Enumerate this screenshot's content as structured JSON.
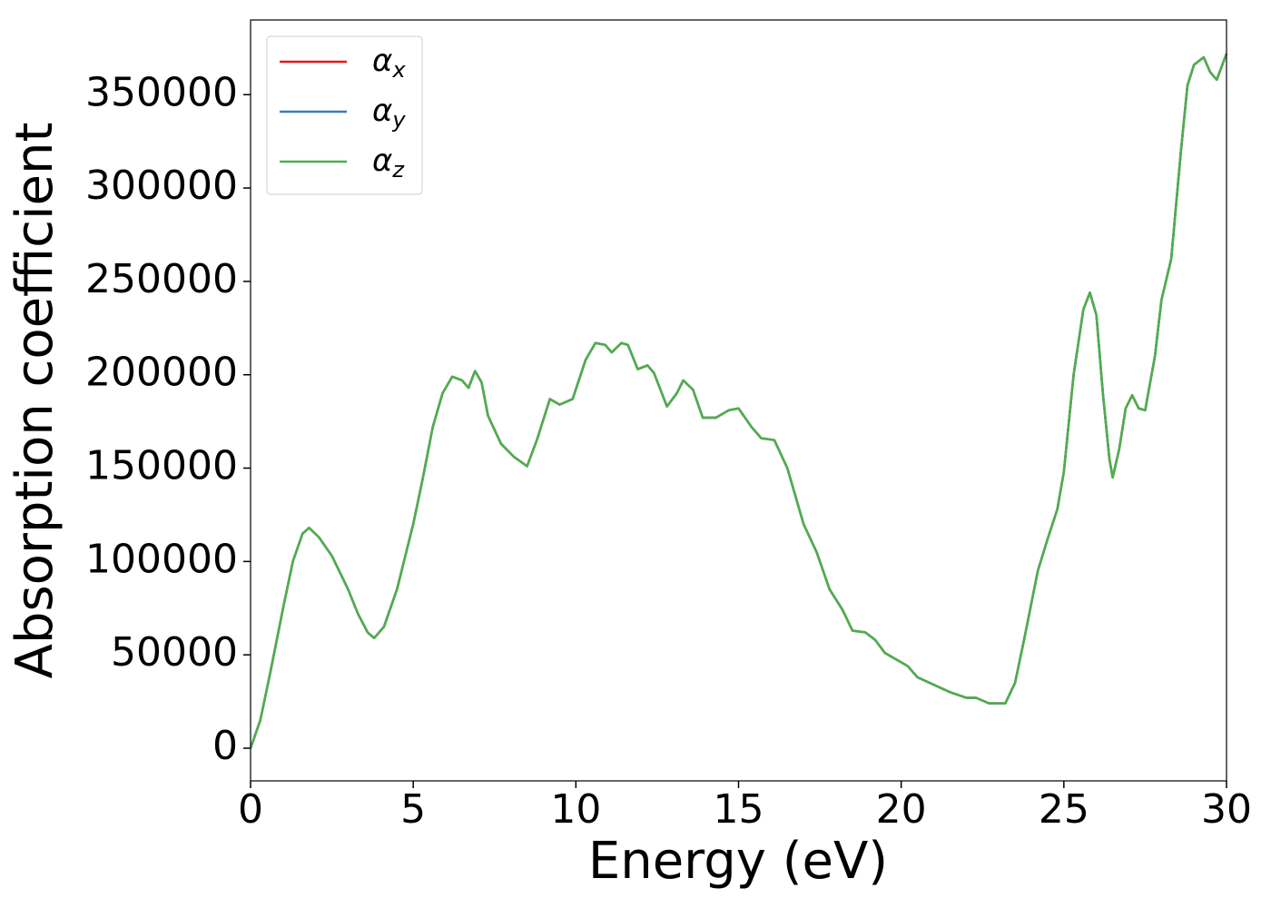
{
  "chart_data": {
    "type": "line",
    "xlabel": "Energy (eV)",
    "ylabel": "Absorption coefficient",
    "xlim": [
      0,
      30
    ],
    "ylim": [
      -17500,
      390000
    ],
    "xticks": [
      0,
      5,
      10,
      15,
      20,
      25,
      30
    ],
    "yticks": [
      0,
      50000,
      100000,
      150000,
      200000,
      250000,
      300000,
      350000
    ],
    "legend": "upper left",
    "x": [
      0,
      0.3,
      0.6,
      1.0,
      1.3,
      1.6,
      1.8,
      2.1,
      2.5,
      3.0,
      3.3,
      3.6,
      3.8,
      4.1,
      4.5,
      5.0,
      5.3,
      5.6,
      5.9,
      6.2,
      6.5,
      6.7,
      6.9,
      7.1,
      7.3,
      7.7,
      8.1,
      8.5,
      8.8,
      9.2,
      9.5,
      9.9,
      10.3,
      10.6,
      10.9,
      11.1,
      11.4,
      11.6,
      11.9,
      12.2,
      12.4,
      12.8,
      13.1,
      13.3,
      13.6,
      13.9,
      14.3,
      14.7,
      15.0,
      15.4,
      15.7,
      16.1,
      16.5,
      17.0,
      17.4,
      17.8,
      18.2,
      18.5,
      18.9,
      19.2,
      19.5,
      20.0,
      20.2,
      20.5,
      21.0,
      21.5,
      22.0,
      22.3,
      22.7,
      23.2,
      23.5,
      23.8,
      24.2,
      24.5,
      24.8,
      25.0,
      25.3,
      25.6,
      25.8,
      26.0,
      26.2,
      26.4,
      26.5,
      26.7,
      26.9,
      27.1,
      27.3,
      27.5,
      27.8,
      28.0,
      28.3,
      28.6,
      28.8,
      29.0,
      29.3,
      29.5,
      29.7,
      30.0
    ],
    "series": [
      {
        "name": "αx",
        "color": "#e41a1c",
        "values": [
          0,
          15000,
          40000,
          75000,
          100000,
          115000,
          118000,
          113000,
          103000,
          85000,
          72000,
          62000,
          59000,
          65000,
          85000,
          120000,
          145000,
          172000,
          190000,
          199000,
          197000,
          193000,
          202000,
          196000,
          178000,
          163000,
          156000,
          151000,
          165000,
          187000,
          184000,
          187000,
          208000,
          217000,
          216000,
          212000,
          217000,
          216000,
          203000,
          205000,
          201000,
          183000,
          190000,
          197000,
          192000,
          177000,
          177000,
          181000,
          182000,
          172000,
          166000,
          165000,
          150000,
          120000,
          105000,
          85000,
          74000,
          63000,
          62000,
          58000,
          51000,
          46000,
          44000,
          38000,
          34000,
          30000,
          27000,
          27000,
          24000,
          24000,
          35000,
          60000,
          95000,
          112000,
          128000,
          148000,
          200000,
          235000,
          244000,
          232000,
          190000,
          155000,
          145000,
          160000,
          182000,
          189000,
          182000,
          181000,
          210000,
          240000,
          262000,
          320000,
          355000,
          366000,
          370000,
          362000,
          358000,
          372000
        ]
      },
      {
        "name": "αy",
        "color": "#377eb8",
        "values": [
          0,
          15000,
          40000,
          75000,
          100000,
          115000,
          118000,
          113000,
          103000,
          85000,
          72000,
          62000,
          59000,
          65000,
          85000,
          120000,
          145000,
          172000,
          190000,
          199000,
          197000,
          193000,
          202000,
          196000,
          178000,
          163000,
          156000,
          151000,
          165000,
          187000,
          184000,
          187000,
          208000,
          217000,
          216000,
          212000,
          217000,
          216000,
          203000,
          205000,
          201000,
          183000,
          190000,
          197000,
          192000,
          177000,
          177000,
          181000,
          182000,
          172000,
          166000,
          165000,
          150000,
          120000,
          105000,
          85000,
          74000,
          63000,
          62000,
          58000,
          51000,
          46000,
          44000,
          38000,
          34000,
          30000,
          27000,
          27000,
          24000,
          24000,
          35000,
          60000,
          95000,
          112000,
          128000,
          148000,
          200000,
          235000,
          244000,
          232000,
          190000,
          155000,
          145000,
          160000,
          182000,
          189000,
          182000,
          181000,
          210000,
          240000,
          262000,
          320000,
          355000,
          366000,
          370000,
          362000,
          358000,
          372000
        ]
      },
      {
        "name": "αz",
        "color": "#4daf4a",
        "values": [
          0,
          15000,
          40000,
          75000,
          100000,
          115000,
          118000,
          113000,
          103000,
          85000,
          72000,
          62000,
          59000,
          65000,
          85000,
          120000,
          145000,
          172000,
          190000,
          199000,
          197000,
          193000,
          202000,
          196000,
          178000,
          163000,
          156000,
          151000,
          165000,
          187000,
          184000,
          187000,
          208000,
          217000,
          216000,
          212000,
          217000,
          216000,
          203000,
          205000,
          201000,
          183000,
          190000,
          197000,
          192000,
          177000,
          177000,
          181000,
          182000,
          172000,
          166000,
          165000,
          150000,
          120000,
          105000,
          85000,
          74000,
          63000,
          62000,
          58000,
          51000,
          46000,
          44000,
          38000,
          34000,
          30000,
          27000,
          27000,
          24000,
          24000,
          35000,
          60000,
          95000,
          112000,
          128000,
          148000,
          200000,
          235000,
          244000,
          232000,
          190000,
          155000,
          145000,
          160000,
          182000,
          189000,
          182000,
          181000,
          210000,
          240000,
          262000,
          320000,
          355000,
          366000,
          370000,
          362000,
          358000,
          372000
        ]
      }
    ]
  }
}
